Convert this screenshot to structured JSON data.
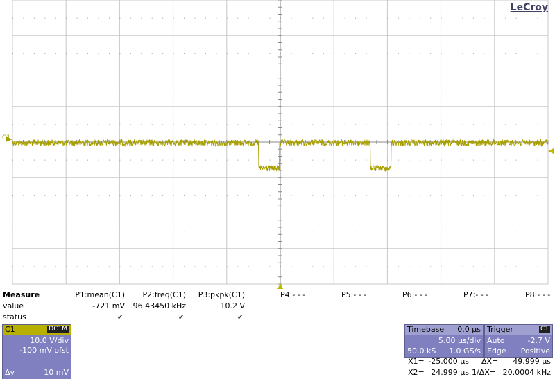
{
  "brand": "LeCroy",
  "channel_marker": "C1",
  "measure": {
    "title": "Measure",
    "row_labels": [
      "value",
      "status"
    ],
    "params": [
      {
        "name": "P1:mean(C1)",
        "value": "-721 mV"
      },
      {
        "name": "P2:freq(C1)",
        "value": "96.43450 kHz"
      },
      {
        "name": "P3:pkpk(C1)",
        "value": "10.2 V"
      }
    ],
    "empty": [
      "P4:- - -",
      "P5:- - -",
      "P6:- - -",
      "P7:- - -",
      "P8:- - -"
    ]
  },
  "channel": {
    "name": "C1",
    "coupling": "DC1M",
    "vdiv": "10.0 V/div",
    "offset": "-100 mV ofst",
    "dy_label": "Δy",
    "dy": "10 mV"
  },
  "timebase": {
    "title": "Timebase",
    "delay": "0.0 µs",
    "tdiv": "5.00 µs/div",
    "samples": "50.0 kS",
    "rate": "1.0 GS/s"
  },
  "trigger": {
    "title": "Trigger",
    "source": "C1",
    "mode": "Auto",
    "level": "-2.7 V",
    "type": "Edge",
    "slope": "Positive"
  },
  "cursors": {
    "x1_label": "X1=",
    "x1": "-25.000 µs",
    "dx_label": "ΔX=",
    "dx": "49.999 µs",
    "x2_label": "X2=",
    "x2": "24.999 µs",
    "inv_label": "1/ΔX=",
    "inv": "20.0004 kHz"
  }
}
